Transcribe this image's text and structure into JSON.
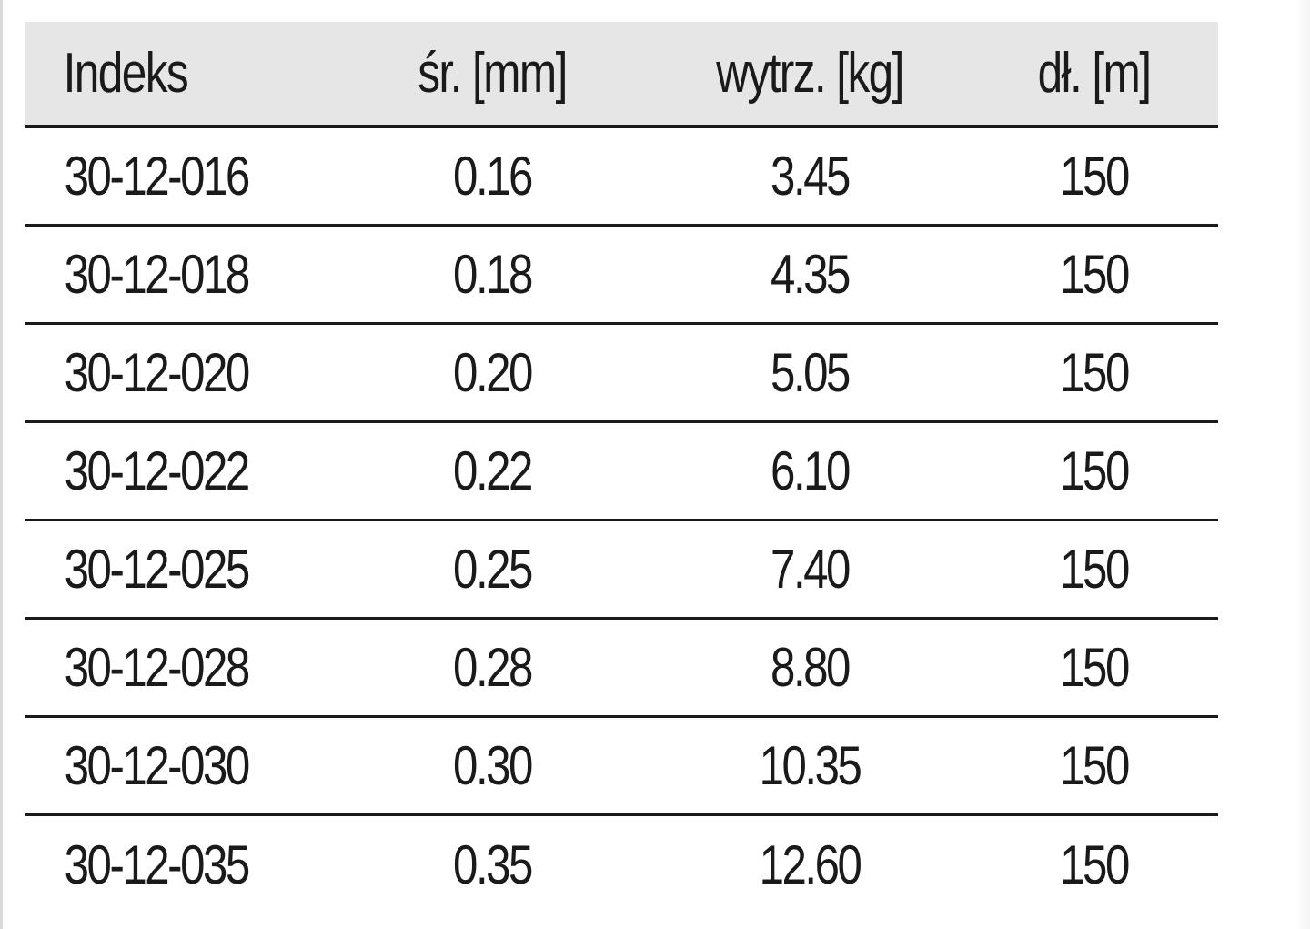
{
  "table": {
    "headers": [
      "Indeks",
      "śr. [mm]",
      "wytrz. [kg]",
      "dł. [m]"
    ],
    "rows": [
      [
        "30-12-016",
        "0.16",
        "3.45",
        "150"
      ],
      [
        "30-12-018",
        "0.18",
        "4.35",
        "150"
      ],
      [
        "30-12-020",
        "0.20",
        "5.05",
        "150"
      ],
      [
        "30-12-022",
        "0.22",
        "6.10",
        "150"
      ],
      [
        "30-12-025",
        "0.25",
        "7.40",
        "150"
      ],
      [
        "30-12-028",
        "0.28",
        "8.80",
        "150"
      ],
      [
        "30-12-030",
        "0.30",
        "10.35",
        "150"
      ],
      [
        "30-12-035",
        "0.35",
        "12.60",
        "150"
      ]
    ]
  },
  "colors": {
    "header_background": "#e6e6e6",
    "text": "#1a1a1a",
    "rule": "#1a1a1a"
  }
}
